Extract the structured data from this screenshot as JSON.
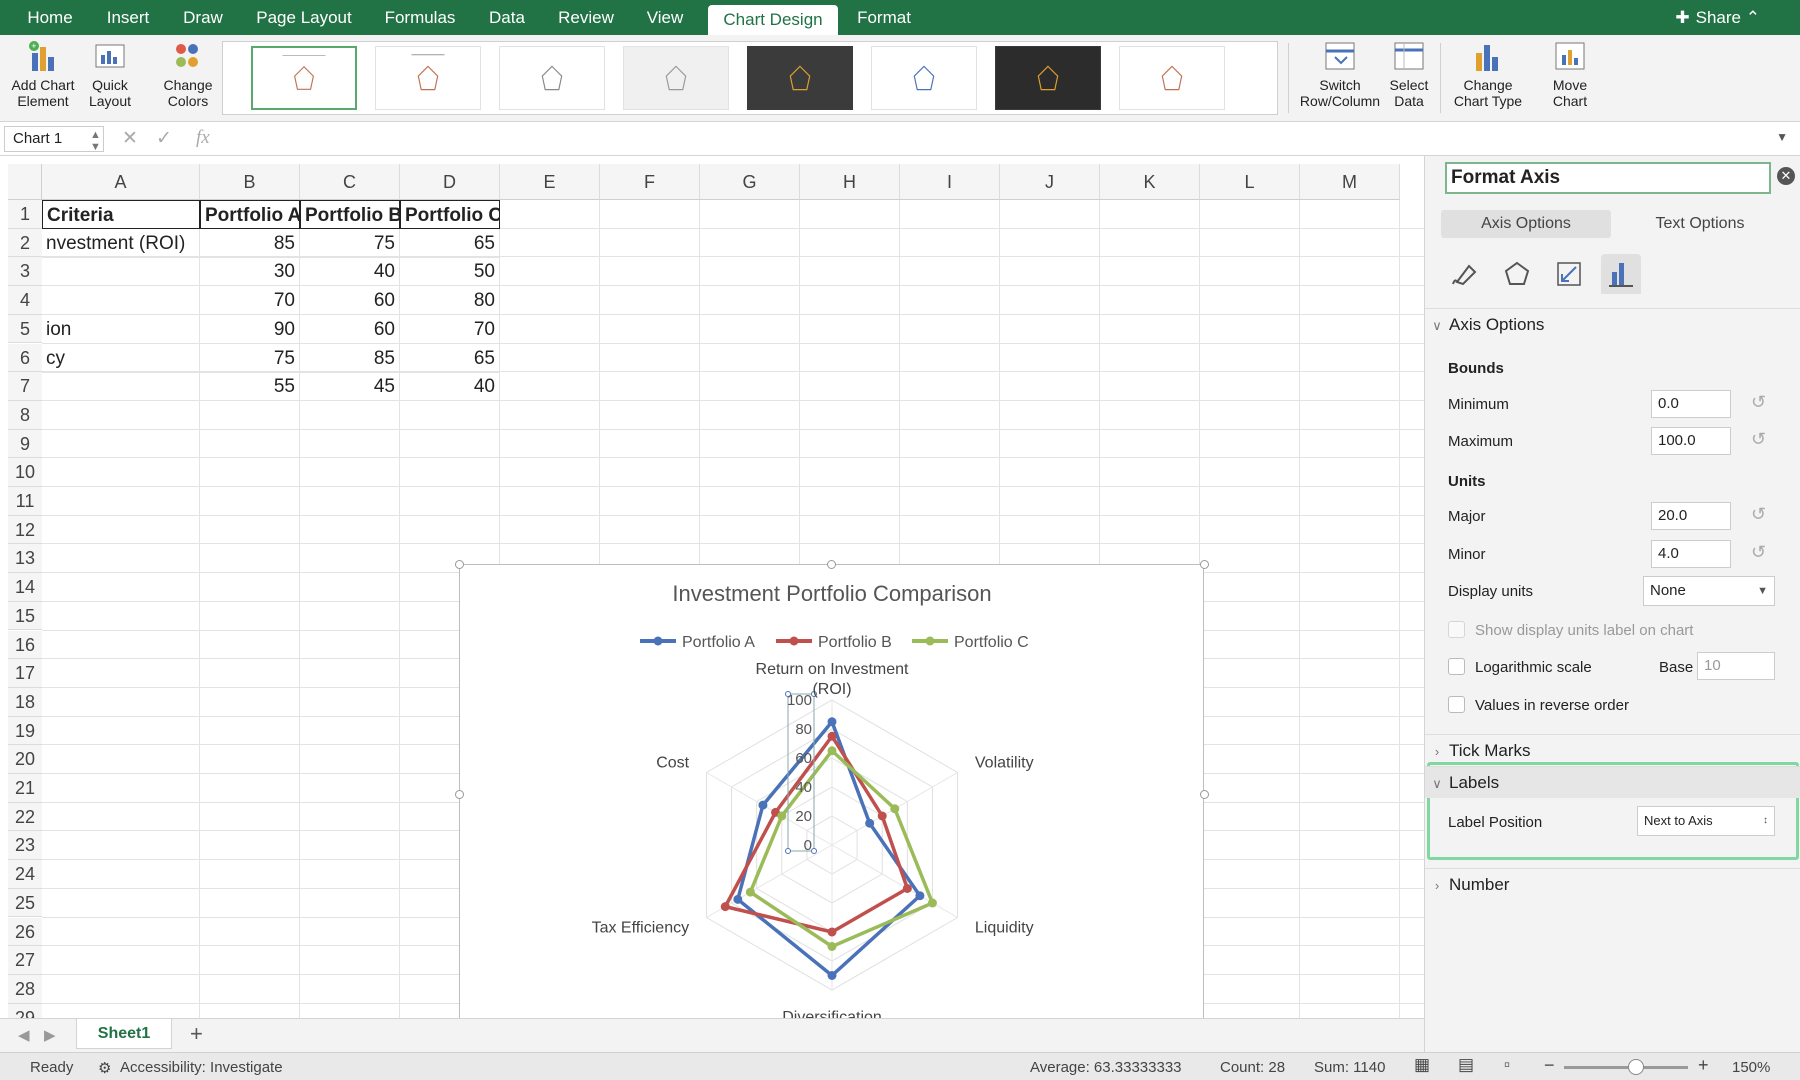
{
  "ribbon": {
    "tabs": [
      {
        "label": "Home"
      },
      {
        "label": "Insert"
      },
      {
        "label": "Draw"
      },
      {
        "label": "Page Layout"
      },
      {
        "label": "Formulas"
      },
      {
        "label": "Data"
      },
      {
        "label": "Review"
      },
      {
        "label": "View"
      },
      {
        "label": "Chart Design"
      },
      {
        "label": "Format"
      }
    ],
    "share_label": "Share",
    "buttons": {
      "add_chart_element": "Add Chart Element",
      "quick_layout": "Quick Layout",
      "change_colors": "Change Colors",
      "switch_row_column": "Switch Row/Column",
      "select_data": "Select Data",
      "change_chart_type": "Change Chart Type",
      "move_chart": "Move Chart"
    }
  },
  "formula_bar": {
    "name_box": "Chart 1",
    "fx": "fx"
  },
  "sheet": {
    "columns": [
      "A",
      "B",
      "C",
      "D",
      "E",
      "F",
      "G",
      "H",
      "I",
      "J",
      "K",
      "L",
      "M"
    ],
    "rows": [
      "1",
      "2",
      "3",
      "4",
      "5",
      "6",
      "7",
      "8",
      "9",
      "10",
      "11",
      "12",
      "13",
      "14",
      "15",
      "16",
      "17",
      "18",
      "19",
      "20",
      "21",
      "22",
      "23",
      "24",
      "25",
      "26",
      "27",
      "28",
      "29"
    ],
    "table": {
      "headers": [
        "Criteria",
        "Portfolio A",
        "Portfolio B",
        "Portfolio C"
      ],
      "rows": [
        [
          "nvestment (ROI)",
          "85",
          "75",
          "65"
        ],
        [
          "",
          "30",
          "40",
          "50"
        ],
        [
          "",
          "70",
          "60",
          "80"
        ],
        [
          "ion",
          "90",
          "60",
          "70"
        ],
        [
          "cy",
          "75",
          "85",
          "65"
        ],
        [
          "",
          "55",
          "45",
          "40"
        ]
      ]
    },
    "tab_name": "Sheet1"
  },
  "chart_data": {
    "type": "radar",
    "title": "Investment Portfolio Comparison",
    "categories": [
      "Return on Investment (ROI)",
      "Volatility",
      "Liquidity",
      "Diversification",
      "Tax Efficiency",
      "Cost"
    ],
    "category_labels_lines": [
      [
        "Return on Investment",
        "(ROI)"
      ],
      [
        "Volatility"
      ],
      [
        "Liquidity"
      ],
      [
        "Diversification"
      ],
      [
        "Tax Efficiency"
      ],
      [
        "Cost"
      ]
    ],
    "series": [
      {
        "name": "Portfolio A",
        "color": "#4a72b8",
        "values": [
          85,
          30,
          70,
          90,
          75,
          55
        ]
      },
      {
        "name": "Portfolio B",
        "color": "#c0504d",
        "values": [
          75,
          40,
          60,
          60,
          85,
          45
        ]
      },
      {
        "name": "Portfolio C",
        "color": "#9bbb59",
        "values": [
          65,
          50,
          80,
          70,
          65,
          40
        ]
      }
    ],
    "ylim": [
      0,
      100
    ],
    "ticks": [
      "0",
      "20",
      "40",
      "60",
      "80",
      "100"
    ],
    "legend": "top"
  },
  "format_pane": {
    "title": "Format Axis",
    "tabs": [
      "Axis Options",
      "Text Options"
    ],
    "section_axis_options": "Axis Options",
    "bounds_label": "Bounds",
    "minimum_label": "Minimum",
    "minimum_value": "0.0",
    "maximum_label": "Maximum",
    "maximum_value": "100.0",
    "units_label": "Units",
    "major_label": "Major",
    "major_value": "20.0",
    "minor_label": "Minor",
    "minor_value": "4.0",
    "display_units_label": "Display units",
    "display_units_value": "None",
    "show_units_label": "Show display units label on chart",
    "log_scale_label": "Logarithmic scale",
    "base_label": "Base",
    "base_value": "10",
    "reverse_label": "Values in reverse order",
    "tick_marks": "Tick Marks",
    "labels": "Labels",
    "label_position_label": "Label Position",
    "label_position_value": "Next to Axis",
    "number": "Number"
  },
  "status": {
    "ready": "Ready",
    "accessibility": "Accessibility: Investigate",
    "average": "Average: 63.33333333",
    "count": "Count: 28",
    "sum": "Sum: 1140",
    "zoom": "150%"
  },
  "colors": {
    "accent": "#217346"
  }
}
